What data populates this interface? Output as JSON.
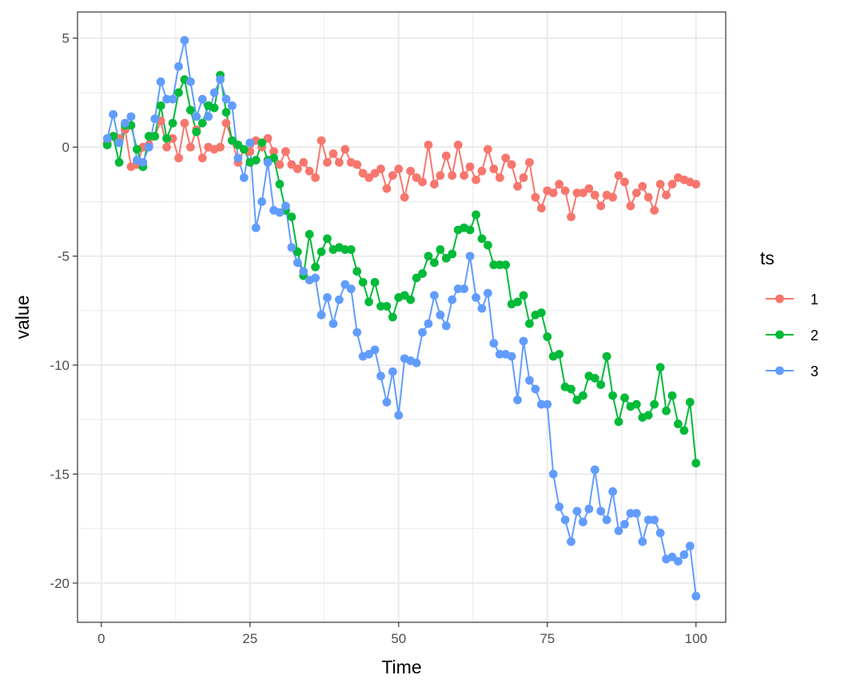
{
  "chart_data": {
    "type": "line",
    "xlabel": "Time",
    "ylabel": "value",
    "xlim": [
      -4,
      105
    ],
    "ylim": [
      -21.8,
      6.2
    ],
    "x_ticks": [
      0,
      25,
      50,
      75,
      100
    ],
    "x_tick_labels": [
      "0",
      "25",
      "50",
      "75",
      "100"
    ],
    "y_ticks": [
      5,
      0,
      -5,
      -10,
      -15,
      -20
    ],
    "y_tick_labels": [
      "5",
      "0",
      "-5",
      "-10",
      "-15",
      "-20"
    ],
    "grid": true,
    "legend": {
      "title": "ts",
      "position": "right"
    },
    "series": [
      {
        "name": "1",
        "color": "#F8766D",
        "x": [
          1,
          2,
          3,
          4,
          5,
          6,
          7,
          8,
          9,
          10,
          11,
          12,
          13,
          14,
          15,
          16,
          17,
          18,
          19,
          20,
          21,
          22,
          23,
          24,
          25,
          26,
          27,
          28,
          29,
          30,
          31,
          32,
          33,
          34,
          35,
          36,
          37,
          38,
          39,
          40,
          41,
          42,
          43,
          44,
          45,
          46,
          47,
          48,
          49,
          50,
          51,
          52,
          53,
          54,
          55,
          56,
          57,
          58,
          59,
          60,
          61,
          62,
          63,
          64,
          65,
          66,
          67,
          68,
          69,
          70,
          71,
          72,
          73,
          74,
          75,
          76,
          77,
          78,
          79,
          80,
          81,
          82,
          83,
          84,
          85,
          86,
          87,
          88,
          89,
          90,
          91,
          92,
          93,
          94,
          95,
          96,
          97,
          98,
          99,
          100
        ],
        "values": [
          0.2,
          0.5,
          0.4,
          0.8,
          -0.9,
          -0.8,
          0,
          0.1,
          0.5,
          1.2,
          0,
          0.4,
          -0.5,
          1.1,
          0,
          0.8,
          -0.5,
          0,
          -0.1,
          0,
          1.1,
          0.3,
          -0.7,
          -0.1,
          -0.2,
          0.3,
          0,
          0.4,
          -0.2,
          -0.8,
          -0.2,
          -0.8,
          -1,
          -0.7,
          -1.1,
          -1.4,
          0.3,
          -0.7,
          -0.3,
          -0.7,
          -0.1,
          -0.7,
          -0.8,
          -1.2,
          -1.4,
          -1.2,
          -1,
          -1.9,
          -1.3,
          -1,
          -2.3,
          -1.1,
          -1.4,
          -1.6,
          0.1,
          -1.7,
          -1.3,
          -0.4,
          -1.3,
          0.1,
          -1.3,
          -0.9,
          -1.5,
          -1.1,
          -0.1,
          -1,
          -1.4,
          -0.5,
          -0.8,
          -1.8,
          -1.4,
          -0.7,
          -2.3,
          -2.8,
          -2,
          -2.1,
          -1.7,
          -2,
          -3.2,
          -2.1,
          -2.1,
          -1.9,
          -2.2,
          -2.7,
          -2.2,
          -2.3,
          -1.3,
          -1.6,
          -2.7,
          -2.1,
          -1.8,
          -2.3,
          -2.9,
          -1.7,
          -2.2,
          -1.7,
          -1.4,
          -1.5,
          -1.6,
          -1.7
        ]
      },
      {
        "name": "2",
        "color": "#00BA38",
        "x": [
          1,
          2,
          3,
          4,
          5,
          6,
          7,
          8,
          9,
          10,
          11,
          12,
          13,
          14,
          15,
          16,
          17,
          18,
          19,
          20,
          21,
          22,
          23,
          24,
          25,
          26,
          27,
          28,
          29,
          30,
          31,
          32,
          33,
          34,
          35,
          36,
          37,
          38,
          39,
          40,
          41,
          42,
          43,
          44,
          45,
          46,
          47,
          48,
          49,
          50,
          51,
          52,
          53,
          54,
          55,
          56,
          57,
          58,
          59,
          60,
          61,
          62,
          63,
          64,
          65,
          66,
          67,
          68,
          69,
          70,
          71,
          72,
          73,
          74,
          75,
          76,
          77,
          78,
          79,
          80,
          81,
          82,
          83,
          84,
          85,
          86,
          87,
          88,
          89,
          90,
          91,
          92,
          93,
          94,
          95,
          96,
          97,
          98,
          99,
          100
        ],
        "values": [
          0.1,
          0.5,
          -0.7,
          1,
          1,
          -0.1,
          -0.9,
          0.5,
          0.5,
          1.9,
          0.4,
          1.1,
          2.5,
          3.1,
          1.7,
          0.7,
          1.1,
          1.9,
          1.8,
          3.3,
          1.6,
          0.3,
          0.1,
          -0.1,
          -0.7,
          -0.6,
          0.2,
          -0.6,
          -0.5,
          -1.7,
          -2.9,
          -3.2,
          -4.8,
          -5.9,
          -4,
          -5.5,
          -4.8,
          -4.2,
          -4.7,
          -4.6,
          -4.7,
          -4.7,
          -5.7,
          -6.2,
          -7.1,
          -6.2,
          -7.3,
          -7.3,
          -7.8,
          -6.9,
          -6.8,
          -7,
          -6,
          -5.8,
          -5,
          -5.3,
          -4.7,
          -5.1,
          -4.9,
          -3.8,
          -3.7,
          -3.8,
          -3.1,
          -4.2,
          -4.5,
          -5.4,
          -5.4,
          -5.4,
          -7.2,
          -7.1,
          -6.8,
          -8.1,
          -7.7,
          -7.6,
          -8.7,
          -9.6,
          -9.5,
          -11,
          -11.1,
          -11.6,
          -11.4,
          -10.5,
          -10.6,
          -10.9,
          -9.6,
          -11.4,
          -12.6,
          -11.5,
          -11.9,
          -11.8,
          -12.4,
          -12.3,
          -11.8,
          -10.1,
          -12.1,
          -11.4,
          -12.7,
          -13,
          -11.7,
          -14.5
        ]
      },
      {
        "name": "3",
        "color": "#619CFF",
        "x": [
          1,
          2,
          3,
          4,
          5,
          6,
          7,
          8,
          9,
          10,
          11,
          12,
          13,
          14,
          15,
          16,
          17,
          18,
          19,
          20,
          21,
          22,
          23,
          24,
          25,
          26,
          27,
          28,
          29,
          30,
          31,
          32,
          33,
          34,
          35,
          36,
          37,
          38,
          39,
          40,
          41,
          42,
          43,
          44,
          45,
          46,
          47,
          48,
          49,
          50,
          51,
          52,
          53,
          54,
          55,
          56,
          57,
          58,
          59,
          60,
          61,
          62,
          63,
          64,
          65,
          66,
          67,
          68,
          69,
          70,
          71,
          72,
          73,
          74,
          75,
          76,
          77,
          78,
          79,
          80,
          81,
          82,
          83,
          84,
          85,
          86,
          87,
          88,
          89,
          90,
          91,
          92,
          93,
          94,
          95,
          96,
          97,
          98,
          99,
          100
        ],
        "values": [
          0.4,
          1.5,
          0.2,
          1.1,
          1.4,
          -0.6,
          -0.7,
          0,
          1.3,
          3,
          2.2,
          2.2,
          3.7,
          4.9,
          3,
          1.4,
          2.2,
          1.4,
          2.5,
          3.1,
          2.2,
          1.9,
          -0.5,
          -1.4,
          0.2,
          -3.7,
          -2.5,
          -0.7,
          -2.9,
          -3,
          -2.7,
          -4.6,
          -5.3,
          -5.7,
          -6.1,
          -6,
          -7.7,
          -6.9,
          -8.1,
          -7,
          -6.3,
          -6.5,
          -8.5,
          -9.6,
          -9.5,
          -9.3,
          -10.5,
          -11.7,
          -10.3,
          -12.3,
          -9.7,
          -9.8,
          -9.9,
          -8.5,
          -8.1,
          -6.8,
          -7.7,
          -8.2,
          -7,
          -6.5,
          -6.5,
          -5,
          -6.9,
          -7.4,
          -6.7,
          -9,
          -9.5,
          -9.5,
          -9.6,
          -11.6,
          -8.9,
          -10.7,
          -11.1,
          -11.8,
          -11.8,
          -15,
          -16.5,
          -17.1,
          -18.1,
          -16.7,
          -17.2,
          -16.6,
          -14.8,
          -16.7,
          -17.1,
          -15.8,
          -17.6,
          -17.3,
          -16.8,
          -16.8,
          -18.1,
          -17.1,
          -17.1,
          -17.7,
          -18.9,
          -18.8,
          -19,
          -18.7,
          -18.3,
          -20.6
        ]
      }
    ]
  }
}
